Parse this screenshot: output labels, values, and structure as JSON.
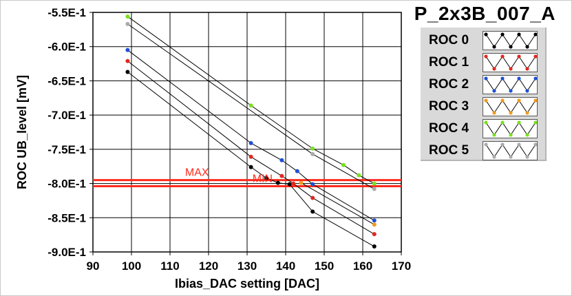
{
  "title": "P_2x3B_007_A",
  "chart_data": {
    "type": "scatter",
    "xlabel": "Ibias_DAC setting [DAC]",
    "ylabel": "ROC UB_level [mV]",
    "xlim": [
      90,
      170
    ],
    "ylim": [
      -0.9,
      -0.55
    ],
    "xticks": [
      "90",
      "100",
      "110",
      "120",
      "130",
      "140",
      "150",
      "160",
      "170"
    ],
    "yticks": [
      "-5.5E-1",
      "-6.0E-1",
      "-6.5E-1",
      "-7.0E-1",
      "-7.5E-1",
      "-8.0E-1",
      "-8.5E-1",
      "-9.0E-1"
    ],
    "xtick_values": [
      90,
      100,
      110,
      120,
      130,
      140,
      150,
      160,
      170
    ],
    "ytick_values": [
      -0.55,
      -0.6,
      -0.65,
      -0.7,
      -0.75,
      -0.8,
      -0.85,
      -0.9
    ],
    "grid": true,
    "legend_position": "top-right",
    "series": [
      {
        "name": "ROC 0",
        "color": "#000000",
        "x": [
          99,
          131,
          135,
          138,
          141,
          147,
          163
        ],
        "y": [
          -0.637,
          -0.776,
          -0.792,
          -0.799,
          -0.801,
          -0.841,
          -0.892
        ]
      },
      {
        "name": "ROC 1",
        "color": "#e0281e",
        "x": [
          99,
          131,
          139,
          142,
          147,
          163
        ],
        "y": [
          -0.621,
          -0.761,
          -0.789,
          -0.8,
          -0.821,
          -0.874
        ]
      },
      {
        "name": "ROC 2",
        "color": "#1e50d2",
        "x": [
          99,
          131,
          139,
          143,
          147,
          163
        ],
        "y": [
          -0.605,
          -0.741,
          -0.766,
          -0.782,
          -0.801,
          -0.854
        ]
      },
      {
        "name": "ROC 3",
        "color": "#f09a1e",
        "x": [
          144,
          163
        ],
        "y": [
          -0.799,
          -0.86
        ]
      },
      {
        "name": "ROC 4",
        "color": "#7ae01e",
        "x": [
          99,
          131,
          147,
          155,
          159,
          163
        ],
        "y": [
          -0.556,
          -0.686,
          -0.749,
          -0.773,
          -0.788,
          -0.8
        ]
      },
      {
        "name": "ROC 5",
        "color": "#aaaaaa",
        "x": [
          99,
          147,
          163
        ],
        "y": [
          -0.567,
          -0.757,
          -0.808
        ]
      }
    ],
    "hlines": [
      {
        "label": "MAX",
        "y": -0.795,
        "color": "#ff2a1a",
        "label_x": 117
      },
      {
        "label": "MIN",
        "y": -0.804,
        "color": "#ff2a1a",
        "label_x": 134
      }
    ]
  }
}
